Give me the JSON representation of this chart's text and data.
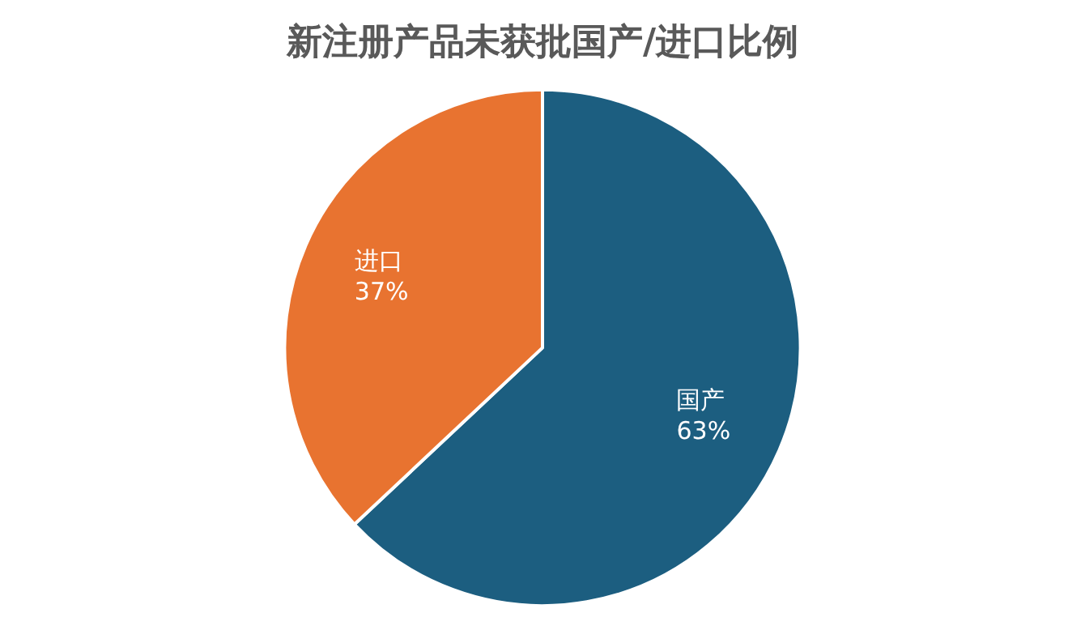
{
  "chart_data": {
    "type": "pie",
    "title": "新注册产品未获批国产/进口比例",
    "categories": [
      "国产",
      "进口"
    ],
    "values": [
      63,
      37
    ],
    "value_labels": [
      "63%",
      "37%"
    ],
    "colors": [
      "#1c5e80",
      "#e87330"
    ],
    "legend": false
  }
}
